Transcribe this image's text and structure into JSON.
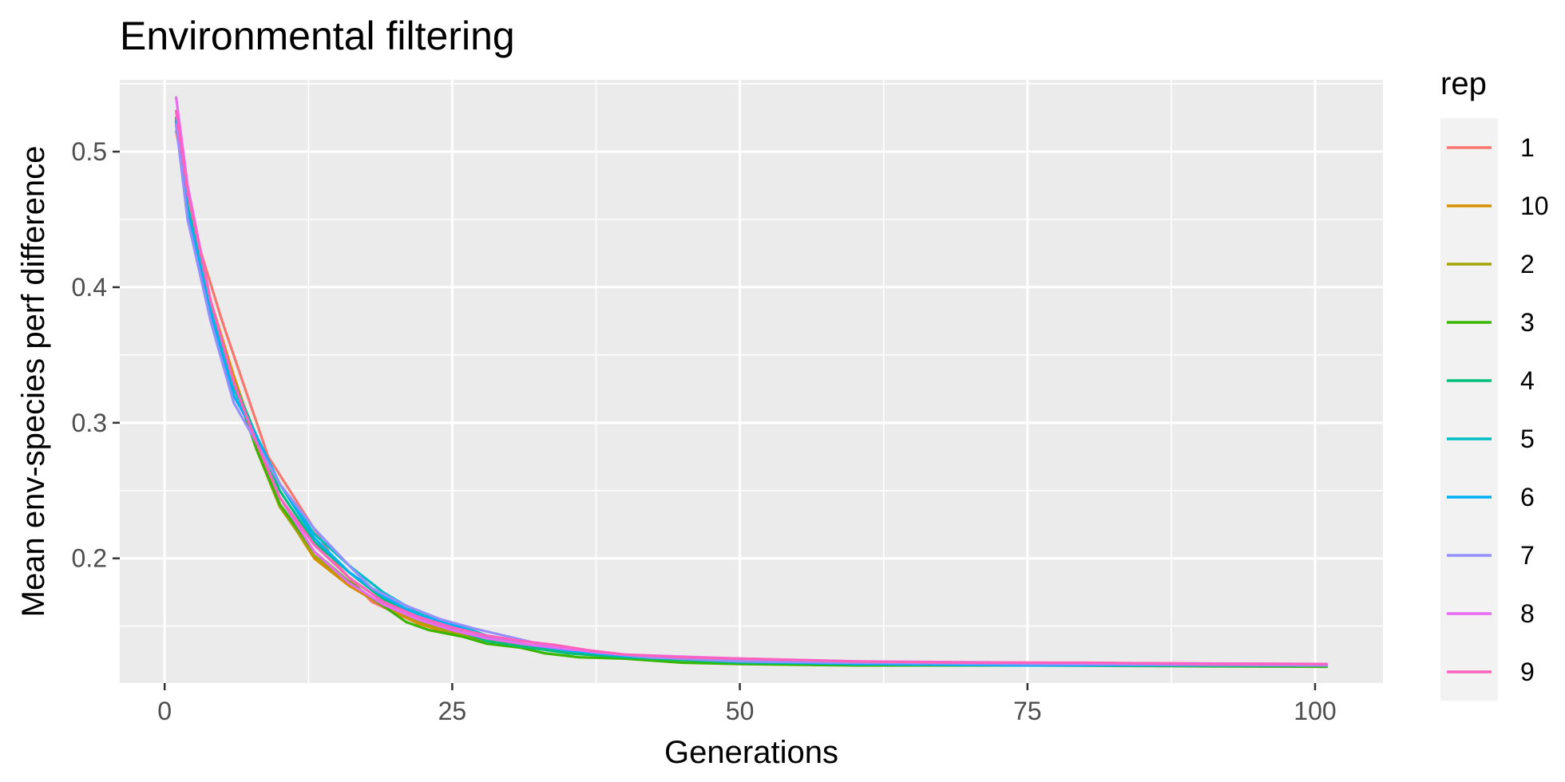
{
  "chart_data": {
    "type": "line",
    "title": "Environmental filtering",
    "xlabel": "Generations",
    "ylabel": "Mean env-species perf difference",
    "xlim": [
      -3.9,
      105.9
    ],
    "ylim": [
      0.108,
      0.553
    ],
    "x_ticks": [
      0,
      25,
      50,
      75,
      100
    ],
    "y_ticks": [
      0.2,
      0.3,
      0.4,
      0.5
    ],
    "x_tick_labels": [
      "0",
      "25",
      "50",
      "75",
      "100"
    ],
    "y_tick_labels": [
      "0.2",
      "0.3",
      "0.4",
      "0.5"
    ],
    "grid": true,
    "legend": {
      "title": "rep",
      "position": "right"
    },
    "panel_background": "#ebebeb",
    "series": [
      {
        "name": "1",
        "color": "#F8766D",
        "x": [
          1,
          3,
          5,
          7,
          9,
          12,
          15,
          18,
          22,
          26,
          30,
          35,
          40,
          50,
          60,
          75,
          101
        ],
        "y": [
          0.515,
          0.43,
          0.375,
          0.325,
          0.275,
          0.235,
          0.195,
          0.168,
          0.152,
          0.143,
          0.136,
          0.131,
          0.128,
          0.124,
          0.123,
          0.123,
          0.122
        ]
      },
      {
        "name": "10",
        "color": "#D89000",
        "x": [
          1,
          2,
          4,
          6,
          8,
          10,
          13,
          16,
          19,
          22,
          25,
          30,
          35,
          40,
          50,
          60,
          75,
          101
        ],
        "y": [
          0.52,
          0.46,
          0.39,
          0.335,
          0.285,
          0.24,
          0.2,
          0.18,
          0.165,
          0.152,
          0.144,
          0.136,
          0.131,
          0.128,
          0.124,
          0.123,
          0.122,
          0.121
        ]
      },
      {
        "name": "2",
        "color": "#A3A500",
        "x": [
          1,
          2,
          4,
          6,
          8,
          10,
          13,
          16,
          19,
          22,
          25,
          30,
          35,
          40,
          50,
          60,
          75,
          101
        ],
        "y": [
          0.52,
          0.455,
          0.385,
          0.33,
          0.28,
          0.238,
          0.202,
          0.182,
          0.166,
          0.154,
          0.145,
          0.137,
          0.13,
          0.127,
          0.123,
          0.122,
          0.122,
          0.121
        ]
      },
      {
        "name": "3",
        "color": "#39B600",
        "x": [
          1,
          2,
          4,
          6,
          8,
          10,
          13,
          16,
          19,
          21,
          23,
          26,
          28,
          31,
          33,
          36,
          40,
          45,
          50,
          60,
          75,
          101
        ],
        "y": [
          0.522,
          0.45,
          0.385,
          0.33,
          0.28,
          0.24,
          0.205,
          0.183,
          0.165,
          0.153,
          0.147,
          0.142,
          0.137,
          0.134,
          0.13,
          0.127,
          0.126,
          0.123,
          0.122,
          0.121,
          0.121,
          0.12
        ]
      },
      {
        "name": "4",
        "color": "#00BF7D",
        "x": [
          1,
          2,
          4,
          6,
          8,
          10,
          13,
          16,
          19,
          22,
          25,
          28,
          31,
          35,
          40,
          50,
          60,
          75,
          101
        ],
        "y": [
          0.525,
          0.46,
          0.385,
          0.33,
          0.29,
          0.25,
          0.212,
          0.19,
          0.17,
          0.156,
          0.148,
          0.139,
          0.135,
          0.13,
          0.127,
          0.123,
          0.122,
          0.121,
          0.121
        ]
      },
      {
        "name": "5",
        "color": "#00BFC4",
        "x": [
          1,
          2,
          4,
          6,
          8,
          10,
          13,
          16,
          19,
          22,
          25,
          28,
          31,
          35,
          40,
          50,
          60,
          75,
          101
        ],
        "y": [
          0.524,
          0.458,
          0.385,
          0.325,
          0.29,
          0.255,
          0.218,
          0.195,
          0.175,
          0.16,
          0.152,
          0.143,
          0.137,
          0.132,
          0.128,
          0.124,
          0.122,
          0.122,
          0.121
        ]
      },
      {
        "name": "6",
        "color": "#00B0F6",
        "x": [
          1,
          2,
          4,
          6,
          8,
          10,
          13,
          16,
          19,
          22,
          25,
          28,
          31,
          35,
          40,
          50,
          60,
          75,
          101
        ],
        "y": [
          0.523,
          0.455,
          0.38,
          0.32,
          0.29,
          0.255,
          0.215,
          0.19,
          0.172,
          0.158,
          0.151,
          0.142,
          0.137,
          0.132,
          0.128,
          0.124,
          0.122,
          0.121,
          0.121
        ]
      },
      {
        "name": "7",
        "color": "#9590FF",
        "x": [
          1,
          2,
          4,
          6,
          8,
          10,
          13,
          16,
          18,
          21,
          24,
          27,
          30,
          33,
          37,
          42,
          50,
          60,
          75,
          101
        ],
        "y": [
          0.52,
          0.45,
          0.375,
          0.315,
          0.285,
          0.255,
          0.222,
          0.195,
          0.178,
          0.165,
          0.155,
          0.148,
          0.142,
          0.136,
          0.131,
          0.127,
          0.124,
          0.123,
          0.122,
          0.121
        ]
      },
      {
        "name": "8",
        "color": "#E76BF3",
        "x": [
          1,
          2,
          4,
          6,
          8,
          10,
          13,
          16,
          19,
          22,
          25,
          28,
          31,
          35,
          40,
          50,
          60,
          75,
          101
        ],
        "y": [
          0.54,
          0.475,
          0.39,
          0.33,
          0.285,
          0.245,
          0.205,
          0.182,
          0.166,
          0.155,
          0.147,
          0.141,
          0.137,
          0.133,
          0.129,
          0.126,
          0.124,
          0.123,
          0.122
        ]
      },
      {
        "name": "9",
        "color": "#FF62BC",
        "x": [
          1,
          2,
          4,
          6,
          8,
          10,
          13,
          16,
          19,
          22,
          25,
          28,
          31,
          34,
          37,
          40,
          45,
          50,
          55,
          60,
          70,
          80,
          90,
          101
        ],
        "y": [
          0.53,
          0.47,
          0.39,
          0.33,
          0.285,
          0.245,
          0.21,
          0.186,
          0.168,
          0.157,
          0.149,
          0.143,
          0.139,
          0.136,
          0.132,
          0.129,
          0.127,
          0.126,
          0.125,
          0.124,
          0.123,
          0.123,
          0.122,
          0.122
        ]
      }
    ]
  }
}
